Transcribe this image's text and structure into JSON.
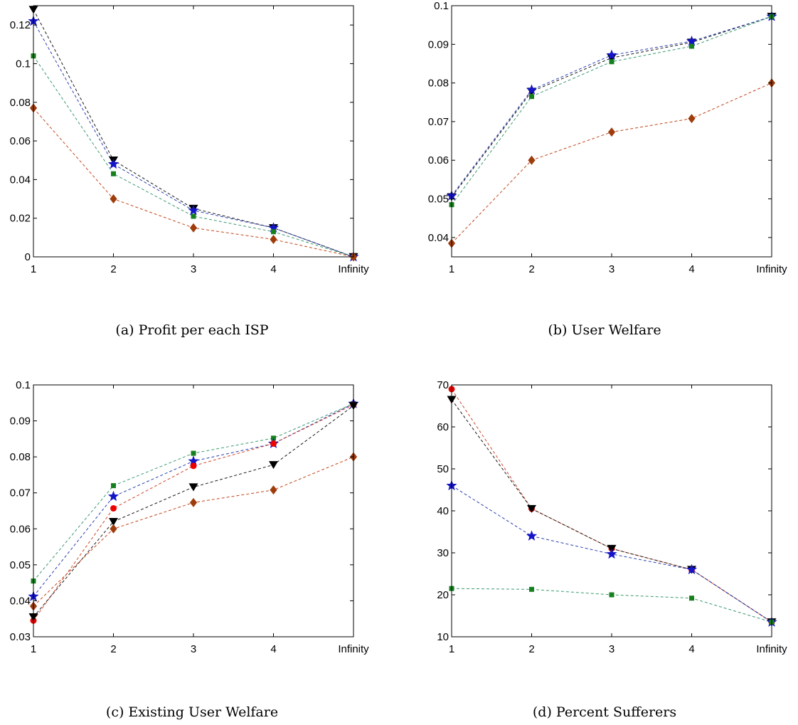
{
  "captions": [
    "(a) Profit per each ISP",
    "(b) User Welfare",
    "(c) Existing User Welfare",
    "(d) Percent Sufferers"
  ],
  "chart_data": [
    {
      "type": "line",
      "caption": "(a) Profit per each ISP",
      "categories": [
        "1",
        "2",
        "3",
        "4",
        "Infinity"
      ],
      "ylim": [
        0,
        0.13
      ],
      "yticks": [
        0,
        0.02,
        0.04,
        0.06,
        0.08,
        0.1,
        0.12
      ],
      "yticklabels": [
        "0",
        "0.02",
        "0.04",
        "0.06",
        "0.08",
        "0.1",
        "0.12"
      ],
      "grid": false,
      "series": [
        {
          "marker": "triangle-down",
          "marker_color": "#000000",
          "line_color": "#1a1a1a",
          "values": [
            0.128,
            0.05,
            0.025,
            0.015,
            0.0
          ]
        },
        {
          "marker": "star",
          "marker_color": "#1515c8",
          "line_color": "#2b3fb0",
          "values": [
            0.122,
            0.048,
            0.024,
            0.015,
            0.0
          ]
        },
        {
          "marker": "square",
          "marker_color": "#16801e",
          "line_color": "#3a9a6e",
          "values": [
            0.104,
            0.043,
            0.021,
            0.013,
            0.0
          ]
        },
        {
          "marker": "diamond",
          "marker_color": "#9e3c0c",
          "line_color": "#c0461a",
          "values": [
            0.077,
            0.03,
            0.015,
            0.009,
            0.0
          ]
        }
      ]
    },
    {
      "type": "line",
      "caption": "(b) User Welfare",
      "categories": [
        "1",
        "2",
        "3",
        "4",
        "Infinity"
      ],
      "ylim": [
        0.035,
        0.1
      ],
      "yticks": [
        0.04,
        0.05,
        0.06,
        0.07,
        0.08,
        0.09,
        0.1
      ],
      "yticklabels": [
        "0.04",
        "0.05",
        "0.06",
        "0.07",
        "0.08",
        "0.09",
        "0.1"
      ],
      "grid": false,
      "series": [
        {
          "marker": "triangle-down",
          "marker_color": "#000000",
          "line_color": "#1a1a1a",
          "values": [
            0.0505,
            0.0778,
            0.0865,
            0.0905,
            0.0972
          ]
        },
        {
          "marker": "star",
          "marker_color": "#1515c8",
          "line_color": "#2b3fb0",
          "values": [
            0.0508,
            0.0782,
            0.0872,
            0.0908,
            0.0972
          ]
        },
        {
          "marker": "square",
          "marker_color": "#16801e",
          "line_color": "#3a9a6e",
          "values": [
            0.0485,
            0.0765,
            0.0855,
            0.0895,
            0.0972
          ]
        },
        {
          "marker": "diamond",
          "marker_color": "#9e3c0c",
          "line_color": "#c0461a",
          "values": [
            0.0385,
            0.06,
            0.0673,
            0.0708,
            0.08
          ]
        }
      ]
    },
    {
      "type": "line",
      "caption": "(c) Existing User Welfare",
      "categories": [
        "1",
        "2",
        "3",
        "4",
        "Infinity"
      ],
      "ylim": [
        0.03,
        0.1
      ],
      "yticks": [
        0.03,
        0.04,
        0.05,
        0.06,
        0.07,
        0.08,
        0.09,
        0.1
      ],
      "yticklabels": [
        "0.03",
        "0.04",
        "0.05",
        "0.06",
        "0.07",
        "0.08",
        "0.09",
        "0.1"
      ],
      "grid": false,
      "series": [
        {
          "marker": "square",
          "marker_color": "#16801e",
          "line_color": "#3a9a6e",
          "values": [
            0.0455,
            0.072,
            0.081,
            0.0852,
            0.0948
          ]
        },
        {
          "marker": "star",
          "marker_color": "#1515c8",
          "line_color": "#2b3fb0",
          "values": [
            0.0412,
            0.069,
            0.0788,
            0.0837,
            0.0948
          ]
        },
        {
          "marker": "circle",
          "marker_color": "#ee0000",
          "line_color": "#d0462a",
          "values": [
            0.0345,
            0.0657,
            0.0775,
            0.0837,
            0.0945
          ]
        },
        {
          "marker": "triangle-down",
          "marker_color": "#000000",
          "line_color": "#1a1a1a",
          "values": [
            0.0355,
            0.062,
            0.0716,
            0.0778,
            0.0942
          ]
        },
        {
          "marker": "diamond",
          "marker_color": "#9e3c0c",
          "line_color": "#c0461a",
          "values": [
            0.0385,
            0.06,
            0.0673,
            0.0708,
            0.08
          ]
        }
      ]
    },
    {
      "type": "line",
      "caption": "(d) Percent Sufferers",
      "categories": [
        "1",
        "2",
        "3",
        "4",
        "Infinity"
      ],
      "ylim": [
        10,
        70
      ],
      "yticks": [
        10,
        20,
        30,
        40,
        50,
        60,
        70
      ],
      "yticklabels": [
        "10",
        "20",
        "30",
        "40",
        "50",
        "60",
        "70"
      ],
      "grid": false,
      "series": [
        {
          "marker": "circle",
          "marker_color": "#ee0000",
          "line_color": "#d0462a",
          "values": [
            69,
            40.5,
            31,
            26,
            13.5
          ]
        },
        {
          "marker": "triangle-down",
          "marker_color": "#000000",
          "line_color": "#1a1a1a",
          "values": [
            66.5,
            40.5,
            31,
            26,
            13.5
          ]
        },
        {
          "marker": "star",
          "marker_color": "#1515c8",
          "line_color": "#2b3fb0",
          "values": [
            46,
            34,
            29.7,
            26,
            13.5
          ]
        },
        {
          "marker": "square",
          "marker_color": "#16801e",
          "line_color": "#3a9a6e",
          "values": [
            21.5,
            21.3,
            20,
            19.2,
            13.5
          ]
        }
      ]
    }
  ]
}
